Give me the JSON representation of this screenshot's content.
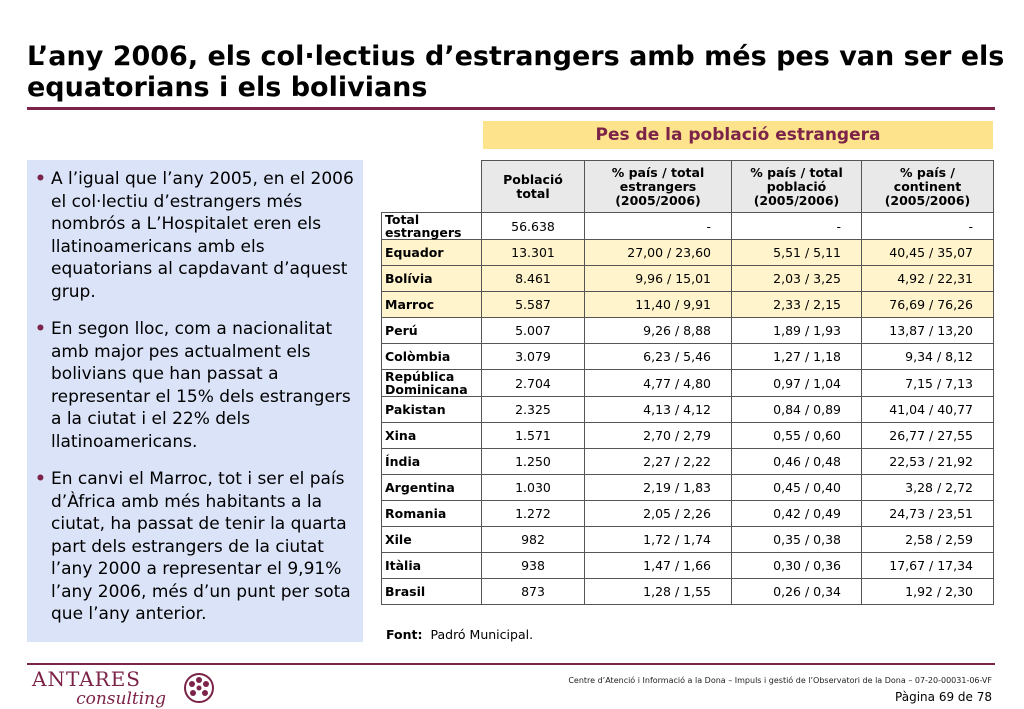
{
  "slide": {
    "title": "L’any 2006, els col·lectius d’estrangers amb més pes van ser els equatorians i els bolivians",
    "table_title": "Pes de la població estrangera",
    "bullets": [
      "A l’igual que l’any 2005, en el 2006 el col·lectiu d’estrangers més nombrós a L’Hospitalet eren els llatinoamericans amb els equatorians al capdavant d’aquest grup.",
      "En segon lloc, com a nacionalitat amb major pes actualment els bolivians que han passat a representar el 15% dels estrangers a la ciutat i el 22% dels llatinoamericans.",
      "En canvi el Marroc, tot i ser el país d’Àfrica amb més habitants a la ciutat, ha passat de tenir la quarta part dels estrangers de la ciutat l’any 2000 a representar el 9,91% l’any 2006, més d’un punt per sota que l’any anterior."
    ],
    "bullet_symbol": "•",
    "source_label": "Font:",
    "source_text": "Padró Municipal.",
    "footer_note": "Centre d’Atenció i Informació a la Dona – Impuls i gestió de l’Observatori de la Dona – 07-20-00031-06-VF",
    "page_number": "Pàgina 69 de 78",
    "logo_line1": "ANTARES",
    "logo_line2": "consulting",
    "logo_icon": "flower-emblem-icon",
    "accent_color": "#7b2348",
    "banner_color": "#fde38c",
    "panel_color": "#dbe3f8"
  },
  "table": {
    "headers": [
      "Població total",
      "% país / total estrangers (2005/2006)",
      "% país / total població (2005/2006)",
      "% país / continent (2005/2006)"
    ],
    "rows": [
      {
        "label": "Total estrangers",
        "total": "56.638",
        "c1": "-",
        "c2": "-",
        "c3": "-"
      },
      {
        "label": "Equador",
        "total": "13.301",
        "c1": "27,00 / 23,60",
        "c2": "5,51 / 5,11",
        "c3": "40,45 / 35,07"
      },
      {
        "label": "Bolívia",
        "total": "8.461",
        "c1": "9,96 / 15,01",
        "c2": "2,03 / 3,25",
        "c3": "4,92 / 22,31"
      },
      {
        "label": "Marroc",
        "total": "5.587",
        "c1": "11,40 / 9,91",
        "c2": "2,33 / 2,15",
        "c3": "76,69 / 76,26"
      },
      {
        "label": "Perú",
        "total": "5.007",
        "c1": "9,26 / 8,88",
        "c2": "1,89 / 1,93",
        "c3": "13,87 / 13,20"
      },
      {
        "label": "Colòmbia",
        "total": "3.079",
        "c1": "6,23 / 5,46",
        "c2": "1,27 / 1,18",
        "c3": "9,34 / 8,12"
      },
      {
        "label": "República Dominicana",
        "total": "2.704",
        "c1": "4,77 / 4,80",
        "c2": "0,97 / 1,04",
        "c3": "7,15 / 7,13"
      },
      {
        "label": "Pakistan",
        "total": "2.325",
        "c1": "4,13 / 4,12",
        "c2": "0,84 / 0,89",
        "c3": "41,04 / 40,77"
      },
      {
        "label": "Xina",
        "total": "1.571",
        "c1": "2,70 / 2,79",
        "c2": "0,55 / 0,60",
        "c3": "26,77 / 27,55"
      },
      {
        "label": "Índia",
        "total": "1.250",
        "c1": "2,27 / 2,22",
        "c2": "0,46 / 0,48",
        "c3": "22,53 / 21,92"
      },
      {
        "label": "Argentina",
        "total": "1.030",
        "c1": "2,19 / 1,83",
        "c2": "0,45 / 0,40",
        "c3": "3,28 / 2,72"
      },
      {
        "label": "Romania",
        "total": "1.272",
        "c1": "2,05 / 2,26",
        "c2": "0,42 / 0,49",
        "c3": "24,73 / 23,51"
      },
      {
        "label": "Xile",
        "total": "982",
        "c1": "1,72 / 1,74",
        "c2": "0,35 / 0,38",
        "c3": "2,58 / 2,59"
      },
      {
        "label": "Itàlia",
        "total": "938",
        "c1": "1,47 / 1,66",
        "c2": "0,30 / 0,36",
        "c3": "17,67 / 17,34"
      },
      {
        "label": "Brasil",
        "total": "873",
        "c1": "1,28 / 1,55",
        "c2": "0,26 / 0,34",
        "c3": "1,92 / 2,30"
      }
    ],
    "highlighted_rows": [
      1,
      2,
      3
    ]
  }
}
